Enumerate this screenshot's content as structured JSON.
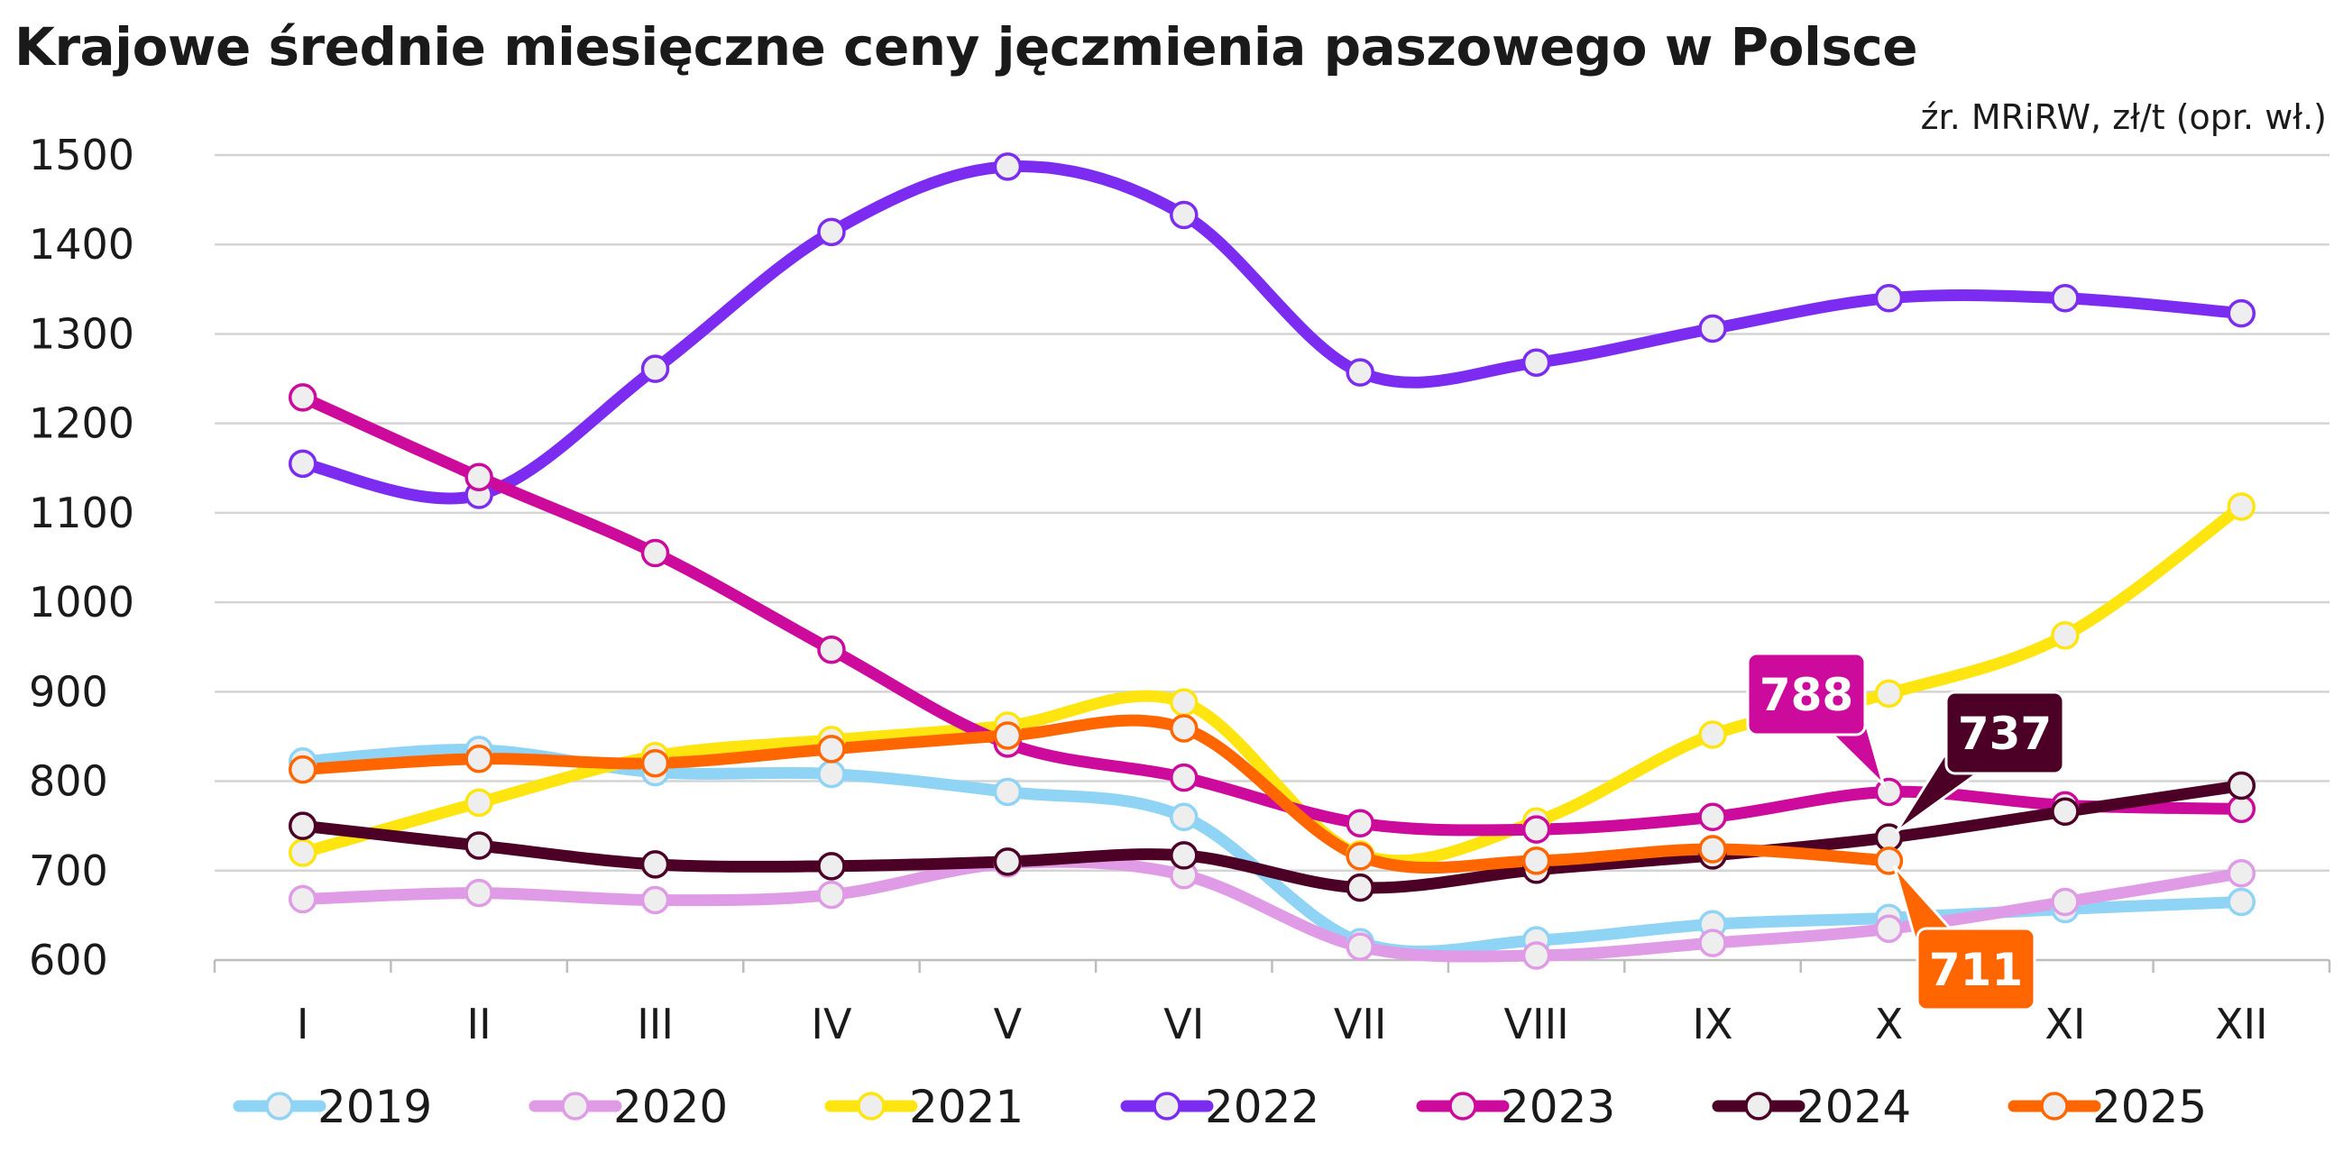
{
  "title": "Krajowe średnie miesięczne ceny jęczmienia paszowego w Polsce",
  "source": "źr. MRiRW, zł/t (opr. wł.)",
  "chart_data": {
    "type": "line",
    "title": "Krajowe średnie miesięczne ceny jęczmienia paszowego w Polsce",
    "subtitle": "źr. MRiRW, zł/t (opr. wł.)",
    "xlabel": "",
    "ylabel": "",
    "categories": [
      "I",
      "II",
      "III",
      "IV",
      "V",
      "VI",
      "VII",
      "VIII",
      "IX",
      "X",
      "XI",
      "XII"
    ],
    "ylim": [
      600,
      1500
    ],
    "yticks": [
      600,
      700,
      800,
      900,
      1000,
      1100,
      1200,
      1300,
      1400,
      1500
    ],
    "grid": true,
    "legend_position": "bottom",
    "series": [
      {
        "name": "2019",
        "color": "#8fd3f5",
        "values": [
          822,
          835,
          810,
          808,
          788,
          760,
          620,
          622,
          640,
          647,
          657,
          665
        ]
      },
      {
        "name": "2020",
        "color": "#e09be6",
        "values": [
          668,
          675,
          667,
          673,
          708,
          695,
          615,
          605,
          619,
          635,
          665,
          697
        ]
      },
      {
        "name": "2021",
        "color": "#ffe510",
        "values": [
          720,
          776,
          828,
          846,
          862,
          888,
          718,
          755,
          852,
          898,
          963,
          1107
        ]
      },
      {
        "name": "2022",
        "color": "#7b2cf0",
        "values": [
          1155,
          1120,
          1261,
          1414,
          1487,
          1433,
          1257,
          1268,
          1306,
          1340,
          1340,
          1323
        ]
      },
      {
        "name": "2023",
        "color": "#cc0a9c",
        "values": [
          1229,
          1140,
          1055,
          947,
          842,
          804,
          753,
          746,
          760,
          788,
          773,
          769
        ]
      },
      {
        "name": "2024",
        "color": "#4d0025",
        "values": [
          750,
          728,
          707,
          705,
          710,
          717,
          681,
          701,
          717,
          737,
          766,
          795
        ]
      },
      {
        "name": "2025",
        "color": "#ff6600",
        "values": [
          813,
          825,
          820,
          836,
          851,
          859,
          716,
          711,
          724,
          711,
          null,
          null
        ]
      }
    ],
    "annotations": [
      {
        "text": "788",
        "series": "2023",
        "category": "X",
        "color": "#cc0a9c"
      },
      {
        "text": "737",
        "series": "2024",
        "category": "X",
        "color": "#4d0025"
      },
      {
        "text": "711",
        "series": "2025",
        "category": "X",
        "color": "#ff6600"
      }
    ]
  }
}
